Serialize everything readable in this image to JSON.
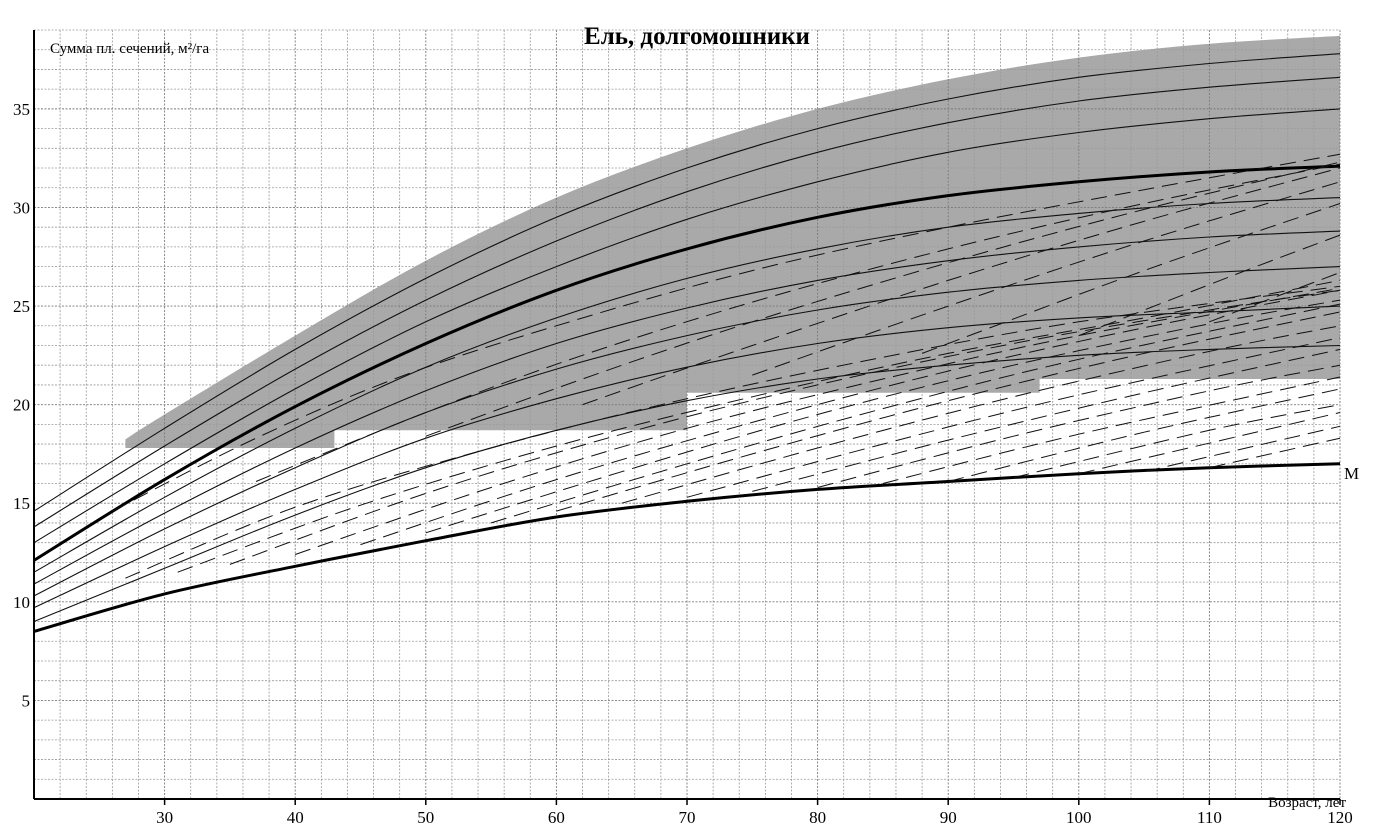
{
  "chart_data": {
    "type": "line",
    "title": "Ель, долгомошники",
    "xlabel": "Возраст, лет",
    "ylabel": "Сумма пл. сечений, м²/га",
    "xlim": [
      20,
      120
    ],
    "ylim": [
      0,
      39
    ],
    "x_ticks": [
      30,
      40,
      50,
      60,
      70,
      80,
      90,
      100,
      110,
      120
    ],
    "y_ticks": [
      5,
      10,
      15,
      20,
      25,
      30,
      35
    ],
    "grid": true,
    "band_color": "#a9a9a9",
    "band": {
      "name": "",
      "upper": {
        "x": [
          20,
          30,
          40,
          50,
          60,
          70,
          80,
          90,
          100,
          110,
          120
        ],
        "y": [
          15.3,
          19.5,
          23.5,
          27.3,
          30.5,
          33.0,
          35.0,
          36.5,
          37.6,
          38.3,
          38.7
        ]
      },
      "lower": {
        "x": [
          27,
          43,
          43,
          70,
          70,
          97,
          97,
          120
        ],
        "y": [
          17.8,
          17.8,
          18.7,
          18.7,
          20.6,
          20.6,
          21.3,
          21.3
        ]
      }
    },
    "series": [
      {
        "style": "thin",
        "x": [
          20,
          30,
          40,
          50,
          60,
          70,
          80,
          90,
          100,
          110,
          120
        ],
        "y": [
          14.6,
          18.8,
          22.8,
          26.4,
          29.5,
          32.0,
          34.0,
          35.5,
          36.6,
          37.3,
          37.8
        ]
      },
      {
        "style": "thin",
        "x": [
          20,
          30,
          40,
          50,
          60,
          70,
          80,
          90,
          100,
          110,
          120
        ],
        "y": [
          13.8,
          17.9,
          21.8,
          25.3,
          28.3,
          30.8,
          32.8,
          34.3,
          35.4,
          36.1,
          36.6
        ]
      },
      {
        "style": "thin",
        "x": [
          20,
          30,
          40,
          50,
          60,
          70,
          80,
          90,
          100,
          110,
          120
        ],
        "y": [
          13.0,
          17.0,
          20.8,
          24.2,
          27.0,
          29.4,
          31.3,
          32.8,
          33.8,
          34.5,
          35.0
        ]
      },
      {
        "style": "thick",
        "x": [
          20,
          30,
          40,
          50,
          60,
          70,
          80,
          90,
          100,
          110,
          120
        ],
        "y": [
          12.1,
          16.2,
          19.9,
          23.1,
          25.8,
          27.9,
          29.5,
          30.6,
          31.3,
          31.8,
          32.1
        ]
      },
      {
        "style": "thin",
        "x": [
          20,
          30,
          40,
          50,
          60,
          70,
          80,
          90,
          100,
          110,
          120
        ],
        "y": [
          11.5,
          15.3,
          18.8,
          21.9,
          24.4,
          26.4,
          27.9,
          29.0,
          29.7,
          30.2,
          30.5
        ]
      },
      {
        "style": "thin",
        "x": [
          20,
          30,
          40,
          50,
          60,
          70,
          80,
          90,
          100,
          110,
          120
        ],
        "y": [
          10.9,
          14.5,
          17.8,
          20.7,
          23.1,
          24.9,
          26.3,
          27.3,
          28.0,
          28.5,
          28.8
        ]
      },
      {
        "style": "thin",
        "x": [
          20,
          30,
          40,
          50,
          60,
          70,
          80,
          90,
          100,
          110,
          120
        ],
        "y": [
          10.3,
          13.7,
          16.8,
          19.6,
          21.8,
          23.5,
          24.8,
          25.7,
          26.3,
          26.7,
          27.0
        ]
      },
      {
        "style": "thin",
        "x": [
          20,
          30,
          40,
          50,
          60,
          70,
          80,
          90,
          100,
          110,
          120
        ],
        "y": [
          9.7,
          12.8,
          15.7,
          18.3,
          20.3,
          21.9,
          23.1,
          23.9,
          24.4,
          24.7,
          25.0
        ]
      },
      {
        "style": "thin",
        "x": [
          20,
          30,
          40,
          50,
          60,
          70,
          80,
          90,
          100,
          110,
          120
        ],
        "y": [
          9.0,
          11.7,
          14.4,
          16.8,
          18.7,
          20.2,
          21.3,
          22.0,
          22.5,
          22.8,
          23.0
        ]
      },
      {
        "style": "thick",
        "x": [
          20,
          30,
          40,
          50,
          60,
          70,
          80,
          90,
          100,
          110,
          120
        ],
        "y": [
          8.5,
          10.4,
          11.8,
          13.1,
          14.3,
          15.1,
          15.7,
          16.1,
          16.5,
          16.8,
          17.0
        ]
      },
      {
        "style": "dashed",
        "x": [
          27,
          40,
          55,
          70,
          85,
          100,
          120
        ],
        "y": [
          11.2,
          14.8,
          17.8,
          20.3,
          22.4,
          24.2,
          26.0
        ]
      },
      {
        "style": "dashed",
        "x": [
          31,
          45,
          60,
          75,
          90,
          105,
          120
        ],
        "y": [
          11.5,
          14.9,
          17.9,
          20.4,
          22.6,
          24.4,
          26.3
        ]
      },
      {
        "style": "dashed",
        "x": [
          35,
          50,
          65,
          80,
          95,
          110,
          120
        ],
        "y": [
          11.9,
          15.5,
          18.5,
          21.0,
          23.1,
          24.8,
          25.8
        ]
      },
      {
        "style": "dashed",
        "x": [
          40,
          55,
          70,
          85,
          100,
          120
        ],
        "y": [
          12.4,
          15.8,
          18.8,
          21.3,
          23.5,
          25.9
        ]
      },
      {
        "style": "dashed",
        "x": [
          45,
          60,
          75,
          90,
          105,
          120
        ],
        "y": [
          12.9,
          16.2,
          19.1,
          21.7,
          23.9,
          25.8
        ]
      },
      {
        "style": "dashed",
        "x": [
          50,
          65,
          80,
          95,
          110,
          120
        ],
        "y": [
          13.5,
          16.6,
          19.5,
          22.0,
          24.1,
          25.3
        ]
      },
      {
        "style": "dashed",
        "x": [
          55,
          70,
          85,
          100,
          120
        ],
        "y": [
          14.0,
          17.0,
          19.8,
          22.3,
          25.1
        ]
      },
      {
        "style": "dashed",
        "x": [
          60,
          75,
          90,
          105,
          120
        ],
        "y": [
          14.6,
          17.5,
          20.2,
          22.6,
          24.7
        ]
      },
      {
        "style": "dashed",
        "x": [
          65,
          80,
          95,
          110,
          120
        ],
        "y": [
          15.0,
          17.8,
          20.4,
          22.7,
          24.0
        ]
      },
      {
        "style": "dashed",
        "x": [
          70,
          85,
          100,
          120
        ],
        "y": [
          15.3,
          18.0,
          20.5,
          23.4
        ]
      },
      {
        "style": "dashed",
        "x": [
          75,
          90,
          105,
          120
        ],
        "y": [
          15.6,
          18.2,
          20.6,
          22.8
        ]
      },
      {
        "style": "dashed",
        "x": [
          80,
          95,
          110,
          120
        ],
        "y": [
          15.8,
          18.4,
          20.7,
          22.0
        ]
      },
      {
        "style": "dashed",
        "x": [
          85,
          100,
          120
        ],
        "y": [
          16.0,
          18.5,
          21.4
        ]
      },
      {
        "style": "dashed",
        "x": [
          90,
          105,
          120
        ],
        "y": [
          16.1,
          18.6,
          20.8
        ]
      },
      {
        "style": "dashed",
        "x": [
          95,
          110,
          120
        ],
        "y": [
          16.3,
          18.7,
          20.0
        ]
      },
      {
        "style": "dashed",
        "x": [
          100,
          120
        ],
        "y": [
          16.5,
          19.6
        ]
      },
      {
        "style": "dashed",
        "x": [
          105,
          120
        ],
        "y": [
          16.6,
          18.9
        ]
      },
      {
        "style": "dashed",
        "x": [
          110,
          120
        ],
        "y": [
          16.8,
          18.3
        ]
      },
      {
        "style": "dashed",
        "x": [
          26,
          37,
          48,
          60,
          75,
          90,
          105,
          120
        ],
        "y": [
          14.6,
          18.3,
          21.4,
          24.0,
          26.8,
          29.0,
          30.9,
          32.7
        ]
      },
      {
        "style": "dashed",
        "x": [
          37,
          50,
          62,
          75,
          90,
          105,
          120
        ],
        "y": [
          16.1,
          19.6,
          22.5,
          25.2,
          27.9,
          30.2,
          32.2
        ]
      },
      {
        "style": "dashed",
        "x": [
          50,
          62,
          75,
          90,
          105,
          120
        ],
        "y": [
          18.4,
          21.3,
          24.2,
          27.2,
          29.9,
          32.3
        ]
      },
      {
        "style": "dashed",
        "x": [
          62,
          75,
          90,
          105,
          120
        ],
        "y": [
          20.0,
          23.0,
          26.3,
          29.3,
          32.0
        ]
      },
      {
        "style": "dashed",
        "x": [
          75,
          90,
          105,
          120
        ],
        "y": [
          21.5,
          25.0,
          28.3,
          31.3
        ]
      },
      {
        "style": "dashed",
        "x": [
          88,
          105,
          120
        ],
        "y": [
          22.6,
          26.8,
          30.2
        ]
      },
      {
        "style": "dashed",
        "x": [
          100,
          112,
          120
        ],
        "y": [
          23.5,
          26.6,
          28.6
        ]
      },
      {
        "style": "dashed",
        "x": [
          110,
          120
        ],
        "y": [
          24.2,
          26.7
        ]
      }
    ],
    "annotations": [
      {
        "text": "М",
        "x": 120,
        "y": 17.0
      }
    ]
  }
}
